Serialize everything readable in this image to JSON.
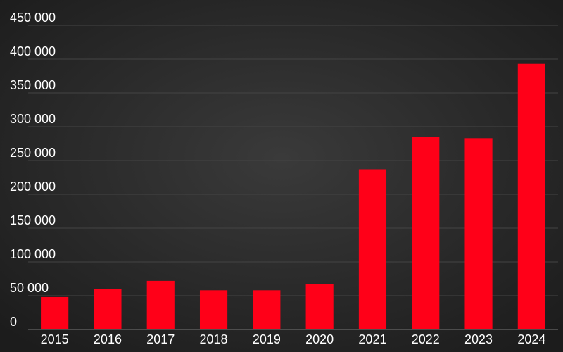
{
  "chart_data": {
    "type": "bar",
    "categories": [
      "2015",
      "2016",
      "2017",
      "2018",
      "2019",
      "2020",
      "2021",
      "2022",
      "2023",
      "2024"
    ],
    "values": [
      48000,
      60000,
      72000,
      58000,
      58000,
      67000,
      237000,
      285000,
      283000,
      393000
    ],
    "color": "#ff0018",
    "ylim": [
      0,
      450000
    ],
    "yticks": [
      0,
      {
        "value": 50000,
        "label": "50 000"
      },
      {
        "value": 100000,
        "label": "100 000"
      },
      {
        "value": 150000,
        "label": "150 000"
      },
      {
        "value": 200000,
        "label": "200 000"
      },
      {
        "value": 250000,
        "label": "250 000"
      },
      {
        "value": 300000,
        "label": "300 000"
      },
      {
        "value": 350000,
        "label": "350 000"
      },
      {
        "value": 400000,
        "label": "400 000"
      },
      {
        "value": 450000,
        "label": "450 000"
      }
    ],
    "grid": true
  }
}
